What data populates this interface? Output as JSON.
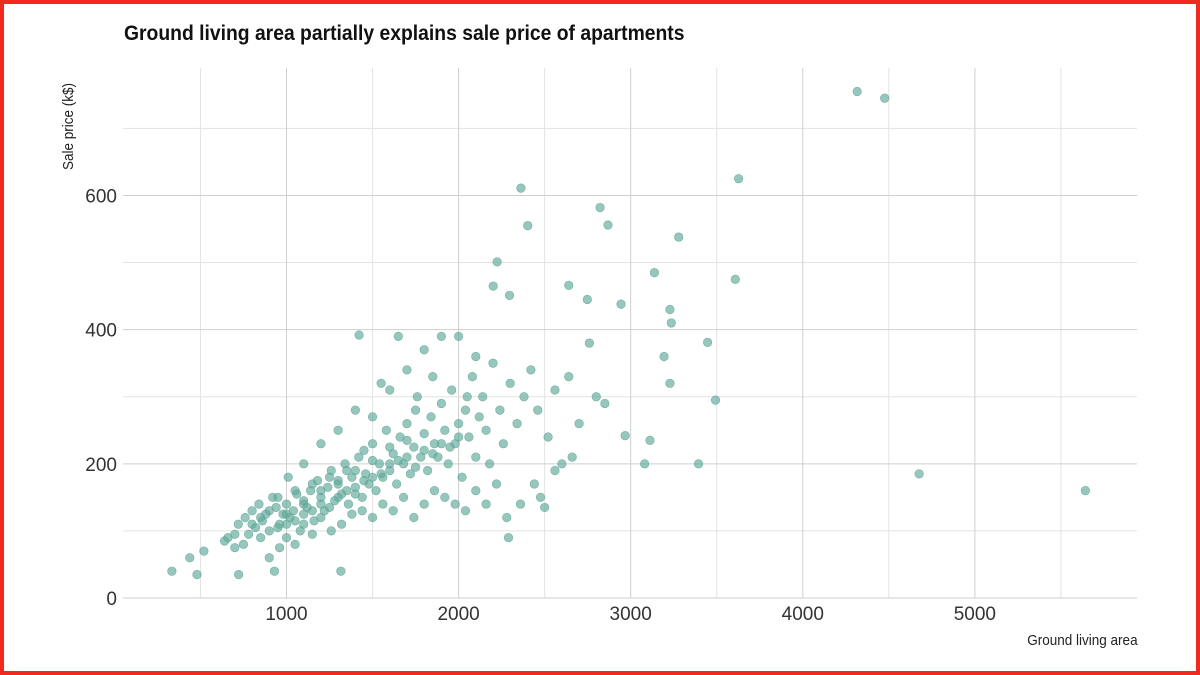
{
  "chart_data": {
    "type": "scatter",
    "title": "Ground living area partially explains sale price of apartments",
    "xlabel": "Ground living area",
    "ylabel": "Sale price (k$)",
    "xlim": [
      50,
      5942
    ],
    "ylim": [
      0,
      790
    ],
    "xticks": [
      1000,
      2000,
      3000,
      4000,
      5000
    ],
    "yticks": [
      0,
      200,
      400,
      600
    ],
    "xtick_labels": [
      "1000",
      "2000",
      "3000",
      "4000",
      "5000"
    ],
    "ytick_labels": [
      "0",
      "200",
      "400",
      "600"
    ],
    "grid": true,
    "point_color": "#5fa898",
    "points": [
      [
        4316,
        755
      ],
      [
        4476,
        745
      ],
      [
        3627,
        625
      ],
      [
        2362,
        611
      ],
      [
        2822,
        582
      ],
      [
        2402,
        555
      ],
      [
        2868,
        556
      ],
      [
        3279,
        538
      ],
      [
        3138,
        485
      ],
      [
        3608,
        475
      ],
      [
        2640,
        466
      ],
      [
        2201,
        465
      ],
      [
        2224,
        501
      ],
      [
        2296,
        451
      ],
      [
        2944,
        438
      ],
      [
        2748,
        445
      ],
      [
        3228,
        430
      ],
      [
        3236,
        410
      ],
      [
        3447,
        381
      ],
      [
        3194,
        360
      ],
      [
        3228,
        320
      ],
      [
        3493,
        295
      ],
      [
        2968,
        242
      ],
      [
        3112,
        235
      ],
      [
        3081,
        200
      ],
      [
        3394,
        200
      ],
      [
        4676,
        185
      ],
      [
        5642,
        160
      ],
      [
        1422,
        392
      ],
      [
        334,
        40
      ],
      [
        480,
        35
      ],
      [
        438,
        60
      ],
      [
        520,
        70
      ],
      [
        722,
        35
      ],
      [
        930,
        40
      ],
      [
        1316,
        40
      ],
      [
        2290,
        90
      ],
      [
        2500,
        135
      ],
      [
        2476,
        150
      ],
      [
        640,
        85
      ],
      [
        660,
        90
      ],
      [
        700,
        75
      ],
      [
        720,
        110
      ],
      [
        760,
        120
      ],
      [
        780,
        95
      ],
      [
        800,
        130
      ],
      [
        820,
        105
      ],
      [
        840,
        140
      ],
      [
        860,
        115
      ],
      [
        880,
        125
      ],
      [
        900,
        100
      ],
      [
        920,
        150
      ],
      [
        940,
        135
      ],
      [
        960,
        110
      ],
      [
        980,
        125
      ],
      [
        1000,
        140
      ],
      [
        1010,
        180
      ],
      [
        1020,
        120
      ],
      [
        1040,
        130
      ],
      [
        1060,
        155
      ],
      [
        1080,
        100
      ],
      [
        1100,
        145
      ],
      [
        1120,
        135
      ],
      [
        1140,
        160
      ],
      [
        1160,
        115
      ],
      [
        1180,
        175
      ],
      [
        1200,
        150
      ],
      [
        1220,
        130
      ],
      [
        1240,
        165
      ],
      [
        1260,
        190
      ],
      [
        1280,
        145
      ],
      [
        1300,
        170
      ],
      [
        1320,
        155
      ],
      [
        1340,
        200
      ],
      [
        1360,
        140
      ],
      [
        1380,
        180
      ],
      [
        1400,
        165
      ],
      [
        1420,
        210
      ],
      [
        1440,
        150
      ],
      [
        1460,
        185
      ],
      [
        1480,
        170
      ],
      [
        1500,
        230
      ],
      [
        1520,
        160
      ],
      [
        1540,
        200
      ],
      [
        1560,
        180
      ],
      [
        1580,
        250
      ],
      [
        1600,
        190
      ],
      [
        1620,
        215
      ],
      [
        1640,
        170
      ],
      [
        1660,
        240
      ],
      [
        1680,
        200
      ],
      [
        1700,
        260
      ],
      [
        1720,
        185
      ],
      [
        1740,
        225
      ],
      [
        1760,
        300
      ],
      [
        1780,
        210
      ],
      [
        1800,
        245
      ],
      [
        1820,
        190
      ],
      [
        1840,
        270
      ],
      [
        1860,
        230
      ],
      [
        1880,
        210
      ],
      [
        1900,
        290
      ],
      [
        1920,
        250
      ],
      [
        1940,
        200
      ],
      [
        1960,
        310
      ],
      [
        1980,
        230
      ],
      [
        2000,
        260
      ],
      [
        2020,
        180
      ],
      [
        2040,
        280
      ],
      [
        2060,
        240
      ],
      [
        2080,
        330
      ],
      [
        2100,
        210
      ],
      [
        2120,
        270
      ],
      [
        2140,
        300
      ],
      [
        2160,
        250
      ],
      [
        2180,
        200
      ],
      [
        2200,
        350
      ],
      [
        2240,
        280
      ],
      [
        2260,
        230
      ],
      [
        2300,
        320
      ],
      [
        2340,
        260
      ],
      [
        2380,
        300
      ],
      [
        2420,
        340
      ],
      [
        2460,
        280
      ],
      [
        2520,
        240
      ],
      [
        2560,
        310
      ],
      [
        2600,
        200
      ],
      [
        2640,
        330
      ],
      [
        2700,
        260
      ],
      [
        2760,
        380
      ],
      [
        2800,
        300
      ],
      [
        2850,
        290
      ],
      [
        900,
        60
      ],
      [
        960,
        75
      ],
      [
        1000,
        90
      ],
      [
        1050,
        80
      ],
      [
        1100,
        110
      ],
      [
        1150,
        95
      ],
      [
        1200,
        120
      ],
      [
        1260,
        100
      ],
      [
        1320,
        110
      ],
      [
        1380,
        125
      ],
      [
        1440,
        130
      ],
      [
        1500,
        120
      ],
      [
        1560,
        140
      ],
      [
        1620,
        130
      ],
      [
        1680,
        150
      ],
      [
        1740,
        120
      ],
      [
        1800,
        140
      ],
      [
        1860,
        160
      ],
      [
        1920,
        150
      ],
      [
        1980,
        140
      ],
      [
        2040,
        130
      ],
      [
        2100,
        160
      ],
      [
        2160,
        140
      ],
      [
        2220,
        170
      ],
      [
        2280,
        120
      ],
      [
        2360,
        140
      ],
      [
        2440,
        170
      ],
      [
        2560,
        190
      ],
      [
        2660,
        210
      ],
      [
        1100,
        200
      ],
      [
        1200,
        230
      ],
      [
        1300,
        250
      ],
      [
        1400,
        280
      ],
      [
        1500,
        270
      ],
      [
        1600,
        310
      ],
      [
        1700,
        340
      ],
      [
        1800,
        370
      ],
      [
        1900,
        390
      ],
      [
        2000,
        390
      ],
      [
        2100,
        360
      ],
      [
        1650,
        390
      ],
      [
        1550,
        320
      ],
      [
        1750,
        280
      ],
      [
        1850,
        330
      ],
      [
        2050,
        300
      ],
      [
        1450,
        220
      ],
      [
        1350,
        190
      ],
      [
        1250,
        180
      ],
      [
        1150,
        170
      ],
      [
        1050,
        160
      ],
      [
        950,
        150
      ],
      [
        850,
        90
      ],
      [
        750,
        80
      ],
      [
        700,
        95
      ],
      [
        1000,
        110
      ],
      [
        1100,
        125
      ],
      [
        1200,
        140
      ],
      [
        1300,
        150
      ],
      [
        1400,
        155
      ],
      [
        1500,
        180
      ],
      [
        1600,
        200
      ],
      [
        1700,
        210
      ],
      [
        1800,
        220
      ],
      [
        1900,
        230
      ],
      [
        2000,
        240
      ],
      [
        1250,
        135
      ],
      [
        1350,
        160
      ],
      [
        1450,
        175
      ],
      [
        1550,
        185
      ],
      [
        1650,
        205
      ],
      [
        1750,
        195
      ],
      [
        1850,
        215
      ],
      [
        1950,
        225
      ],
      [
        1150,
        130
      ],
      [
        1050,
        115
      ],
      [
        950,
        105
      ],
      [
        850,
        120
      ],
      [
        800,
        110
      ],
      [
        900,
        130
      ],
      [
        1000,
        125
      ],
      [
        1100,
        140
      ],
      [
        1200,
        160
      ],
      [
        1300,
        175
      ],
      [
        1400,
        190
      ],
      [
        1500,
        205
      ],
      [
        1600,
        225
      ],
      [
        1700,
        235
      ]
    ]
  }
}
